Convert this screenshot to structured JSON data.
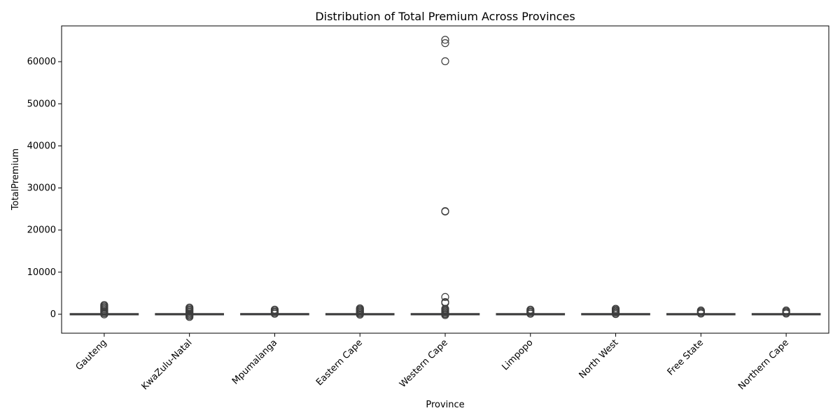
{
  "chart_data": {
    "type": "box",
    "title": "Distribution of Total Premium Across Provinces",
    "xlabel": "Province",
    "ylabel": "TotalPremium",
    "ylim": [
      -4500,
      68500
    ],
    "yticks": [
      0,
      10000,
      20000,
      30000,
      40000,
      50000,
      60000
    ],
    "grid": false,
    "box_color": "#4c72b0",
    "categories": [
      "Gauteng",
      "KwaZulu-Natal",
      "Mpumalanga",
      "Eastern Cape",
      "Western Cape",
      "Limpopo",
      "North West",
      "Free State",
      "Northern Cape"
    ],
    "boxes": [
      {
        "q1": -50,
        "median": 0,
        "q3": 10,
        "whisker_low": -60,
        "whisker_high": 60,
        "outlier_min": -150,
        "outlier_max": 2200
      },
      {
        "q1": -80,
        "median": 0,
        "q3": 10,
        "whisker_low": -100,
        "whisker_high": 60,
        "outlier_min": -800,
        "outlier_max": 1600
      },
      {
        "q1": 0,
        "median": 0,
        "q3": 20,
        "whisker_low": 0,
        "whisker_high": 50,
        "outlier_min": -50,
        "outlier_max": 1100
      },
      {
        "q1": -30,
        "median": 0,
        "q3": 10,
        "whisker_low": -40,
        "whisker_high": 50,
        "outlier_min": -100,
        "outlier_max": 1400
      },
      {
        "q1": 0,
        "median": 0,
        "q3": 15,
        "whisker_low": -10,
        "whisker_high": 50,
        "outlier_min": -300,
        "outlier_max": 1300,
        "extra_outliers": [
          2700,
          2900,
          4100,
          24400,
          24500,
          60100,
          64400,
          65200
        ]
      },
      {
        "q1": 0,
        "median": 0,
        "q3": 10,
        "whisker_low": 0,
        "whisker_high": 40,
        "outlier_min": -50,
        "outlier_max": 1100
      },
      {
        "q1": 0,
        "median": 0,
        "q3": 15,
        "whisker_low": 0,
        "whisker_high": 50,
        "outlier_min": -50,
        "outlier_max": 1300
      },
      {
        "q1": 0,
        "median": 0,
        "q3": 10,
        "whisker_low": 0,
        "whisker_high": 40,
        "outlier_min": -50,
        "outlier_max": 900
      },
      {
        "q1": 0,
        "median": 0,
        "q3": 10,
        "whisker_low": 0,
        "whisker_high": 40,
        "outlier_min": -50,
        "outlier_max": 900
      }
    ]
  }
}
